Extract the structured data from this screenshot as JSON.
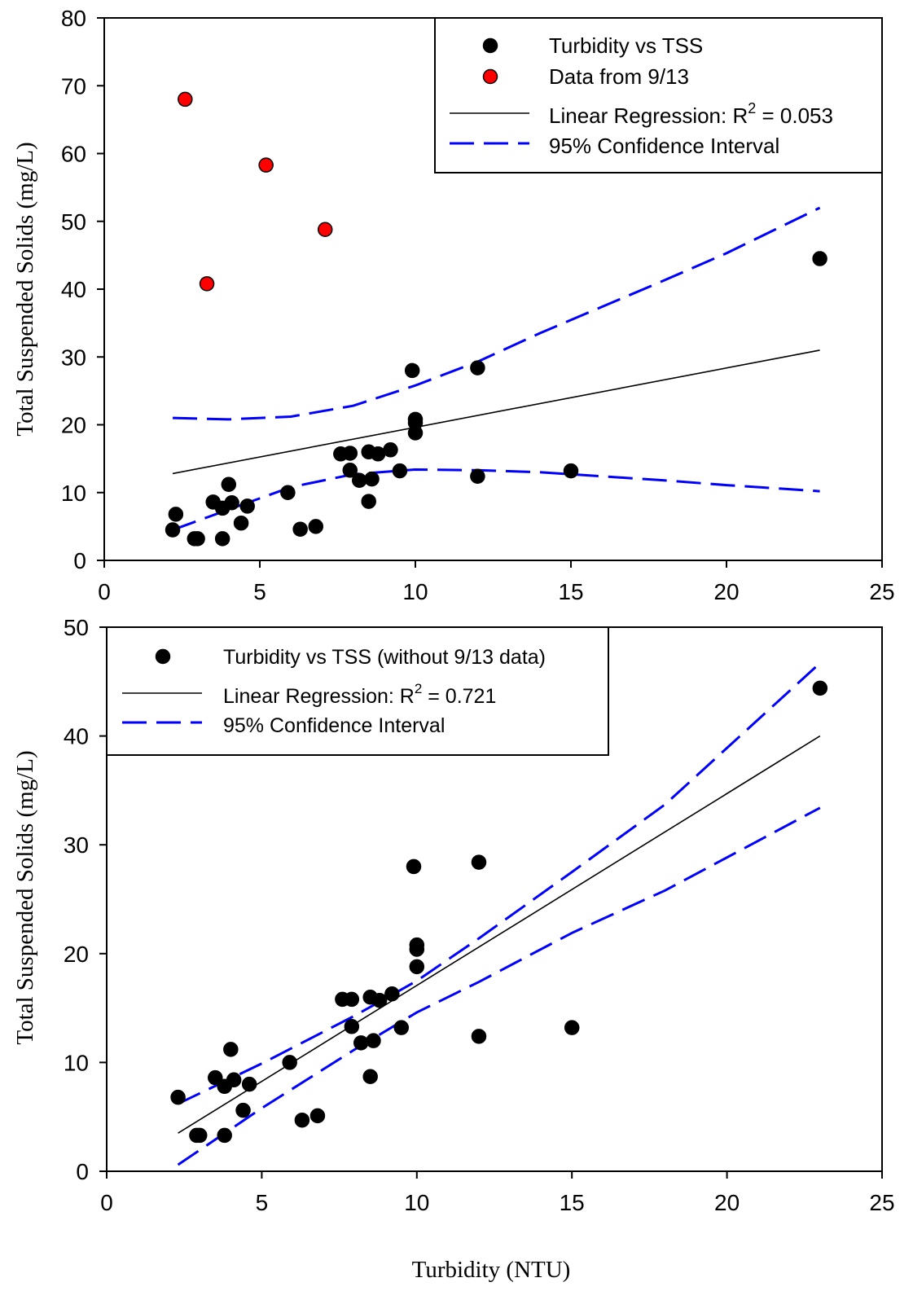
{
  "chart_data": [
    {
      "type": "scatter",
      "xlabel": "",
      "ylabel": "Total Suspended Solids (mg/L)",
      "xlim": [
        0,
        25
      ],
      "ylim": [
        0,
        80
      ],
      "xticks": [
        "0",
        "5",
        "10",
        "15",
        "20",
        "25"
      ],
      "yticks": [
        "0",
        "10",
        "20",
        "30",
        "40",
        "50",
        "60",
        "70",
        "80"
      ],
      "grid": false,
      "legend_position": "top-right",
      "series": [
        {
          "name": "Turbidity vs TSS",
          "kind": "scatter",
          "color": "#000000",
          "points": [
            [
              2.2,
              4.5
            ],
            [
              2.3,
              6.8
            ],
            [
              2.9,
              3.2
            ],
            [
              3.0,
              3.2
            ],
            [
              3.5,
              8.6
            ],
            [
              3.8,
              7.7
            ],
            [
              3.8,
              3.2
            ],
            [
              4.0,
              11.2
            ],
            [
              4.1,
              8.5
            ],
            [
              4.4,
              5.5
            ],
            [
              4.6,
              8.0
            ],
            [
              5.9,
              10.0
            ],
            [
              6.3,
              4.6
            ],
            [
              6.8,
              5.0
            ],
            [
              7.6,
              15.7
            ],
            [
              7.9,
              15.8
            ],
            [
              7.9,
              13.3
            ],
            [
              8.2,
              11.8
            ],
            [
              8.5,
              16.0
            ],
            [
              8.5,
              8.7
            ],
            [
              8.6,
              12.0
            ],
            [
              8.8,
              15.7
            ],
            [
              9.2,
              16.3
            ],
            [
              9.5,
              13.2
            ],
            [
              9.9,
              28.0
            ],
            [
              10.0,
              20.8
            ],
            [
              10.0,
              20.3
            ],
            [
              10.0,
              18.8
            ],
            [
              12.0,
              28.4
            ],
            [
              12.0,
              12.4
            ],
            [
              15.0,
              13.2
            ],
            [
              23.0,
              44.5
            ]
          ]
        },
        {
          "name": "Data from 9/13",
          "kind": "scatter",
          "color": "#ff0000",
          "points": [
            [
              2.6,
              68.0
            ],
            [
              3.3,
              40.8
            ],
            [
              5.2,
              58.3
            ],
            [
              7.1,
              48.8
            ]
          ]
        },
        {
          "name": "Linear Regression: R² = 0.053",
          "kind": "line",
          "color": "#000000",
          "points": [
            [
              2.2,
              12.8
            ],
            [
              23.0,
              31.0
            ]
          ]
        },
        {
          "name": "95% Confidence Interval",
          "kind": "dashed",
          "color": "#0000ff",
          "upper": [
            [
              2.2,
              21.0
            ],
            [
              4.0,
              20.8
            ],
            [
              6.0,
              21.2
            ],
            [
              8.0,
              22.8
            ],
            [
              10.0,
              25.8
            ],
            [
              12.0,
              29.3
            ],
            [
              14.0,
              33.5
            ],
            [
              16.0,
              37.4
            ],
            [
              18.0,
              41.3
            ],
            [
              20.0,
              45.3
            ],
            [
              23.0,
              52.0
            ]
          ],
          "lower": [
            [
              2.2,
              4.5
            ],
            [
              4.0,
              7.5
            ],
            [
              6.0,
              10.8
            ],
            [
              8.0,
              12.7
            ],
            [
              10.0,
              13.4
            ],
            [
              12.0,
              13.3
            ],
            [
              14.0,
              13.0
            ],
            [
              16.0,
              12.4
            ],
            [
              18.0,
              11.8
            ],
            [
              20.0,
              11.1
            ],
            [
              23.0,
              10.2
            ]
          ]
        }
      ],
      "legend": {
        "items": [
          {
            "label": "Turbidity vs TSS",
            "symbol": "dot",
            "color": "#000000"
          },
          {
            "label": "Data from 9/13",
            "symbol": "dot",
            "color": "#ff0000"
          },
          {
            "label_prefix": "Linear Regression: R",
            "label_sup": "2",
            "label_suffix": " = 0.053",
            "symbol": "line",
            "color": "#000000"
          },
          {
            "label": "95% Confidence Interval",
            "symbol": "dash",
            "color": "#0000ff"
          }
        ]
      }
    },
    {
      "type": "scatter",
      "xlabel": "Turbidity (NTU)",
      "ylabel": "Total Suspended Solids (mg/L)",
      "xlim": [
        0,
        25
      ],
      "ylim": [
        0,
        50
      ],
      "xticks": [
        "0",
        "5",
        "10",
        "15",
        "20",
        "25"
      ],
      "yticks": [
        "0",
        "10",
        "20",
        "30",
        "40",
        "50"
      ],
      "grid": false,
      "legend_position": "top-left",
      "series": [
        {
          "name": "Turbidity vs TSS (without 9/13 data)",
          "kind": "scatter",
          "color": "#000000",
          "points": [
            [
              2.3,
              6.8
            ],
            [
              2.9,
              3.3
            ],
            [
              3.0,
              3.3
            ],
            [
              3.5,
              8.6
            ],
            [
              3.8,
              7.8
            ],
            [
              3.8,
              3.3
            ],
            [
              4.0,
              11.2
            ],
            [
              4.1,
              8.4
            ],
            [
              4.4,
              5.6
            ],
            [
              4.6,
              8.0
            ],
            [
              5.9,
              10.0
            ],
            [
              6.3,
              4.7
            ],
            [
              6.8,
              5.1
            ],
            [
              7.6,
              15.8
            ],
            [
              7.9,
              15.8
            ],
            [
              7.9,
              13.3
            ],
            [
              8.2,
              11.8
            ],
            [
              8.5,
              16.0
            ],
            [
              8.5,
              8.7
            ],
            [
              8.6,
              12.0
            ],
            [
              8.8,
              15.7
            ],
            [
              9.2,
              16.3
            ],
            [
              9.5,
              13.2
            ],
            [
              9.9,
              28.0
            ],
            [
              10.0,
              20.8
            ],
            [
              10.0,
              20.4
            ],
            [
              10.0,
              18.8
            ],
            [
              12.0,
              28.4
            ],
            [
              12.0,
              12.4
            ],
            [
              15.0,
              13.2
            ],
            [
              23.0,
              44.4
            ]
          ]
        },
        {
          "name": "Linear Regression: R² = 0.721",
          "kind": "line",
          "color": "#000000",
          "points": [
            [
              2.3,
              3.5
            ],
            [
              23.0,
              40.0
            ]
          ]
        },
        {
          "name": "95% Confidence Interval",
          "kind": "dashed",
          "color": "#0000ff",
          "upper": [
            [
              2.3,
              6.2
            ],
            [
              5.0,
              9.9
            ],
            [
              8.0,
              14.3
            ],
            [
              10.0,
              17.5
            ],
            [
              12.0,
              21.4
            ],
            [
              15.0,
              27.5
            ],
            [
              18.0,
              33.7
            ],
            [
              23.0,
              46.7
            ]
          ],
          "lower": [
            [
              2.3,
              0.6
            ],
            [
              5.0,
              5.8
            ],
            [
              8.0,
              11.2
            ],
            [
              10.0,
              14.6
            ],
            [
              12.0,
              17.4
            ],
            [
              15.0,
              21.9
            ],
            [
              18.0,
              25.8
            ],
            [
              23.0,
              33.4
            ]
          ]
        }
      ],
      "legend": {
        "items": [
          {
            "label": "Turbidity vs TSS (without 9/13 data)",
            "symbol": "dot",
            "color": "#000000"
          },
          {
            "label_prefix": "Linear Regression: R",
            "label_sup": "2",
            "label_suffix": " = 0.721",
            "symbol": "line",
            "color": "#000000"
          },
          {
            "label": "95% Confidence Interval",
            "symbol": "dash",
            "color": "#0000ff"
          }
        ]
      }
    }
  ]
}
